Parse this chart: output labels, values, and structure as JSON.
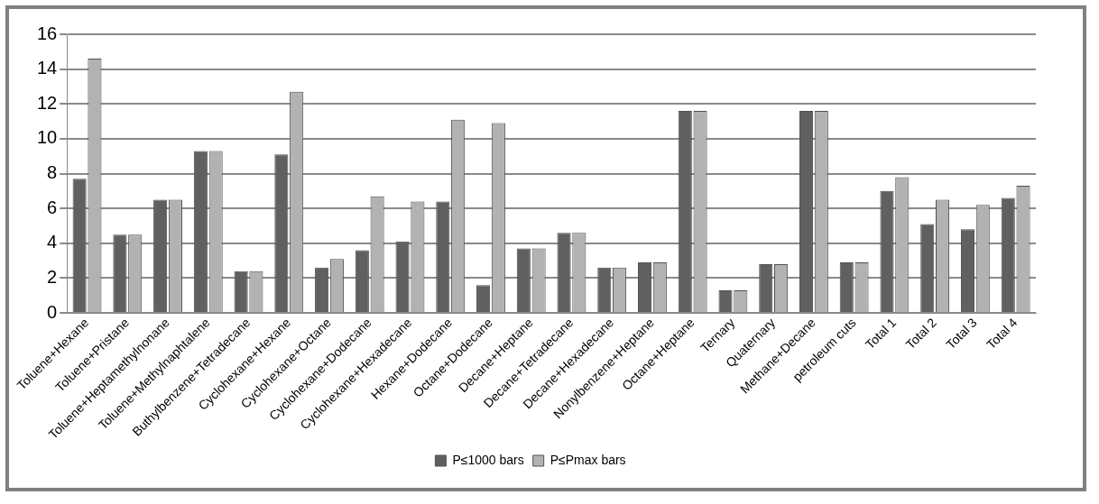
{
  "chart_data": {
    "type": "bar",
    "categories": [
      "Toluene+Hexane",
      "Toluene+Pristane",
      "Toluene+Heptamethylnonane",
      "Toluene+Methylnaphtalene",
      "Buthylbenzene+Tetradecane",
      "Cyclohexane+Hexane",
      "Cyclohexane+Octane",
      "Cyclohexane+Dodecane",
      "Cyclohexane+Hexadecane",
      "Hexane+Dodecane",
      "Octane+Dodecane",
      "Decane+Heptane",
      "Decane+Tetradecane",
      "Decane+Hexadecane",
      "Nonylbenzene+Heptane",
      "Octane+Heptane",
      "Ternary",
      "Quaternary",
      "Methane+Decane",
      "petroleum cuts",
      "Total 1",
      "Total 2",
      "Total 3",
      "Total 4"
    ],
    "series": [
      {
        "name": "P≤1000 bars",
        "color": "#606060",
        "values": [
          7.7,
          4.5,
          6.5,
          9.3,
          2.4,
          9.1,
          2.6,
          3.6,
          4.1,
          6.4,
          1.6,
          3.7,
          4.6,
          2.6,
          2.9,
          11.6,
          1.3,
          2.8,
          11.6,
          2.9,
          7.0,
          5.1,
          4.8,
          6.6
        ]
      },
      {
        "name": "P≤Pmax bars",
        "color": "#b2b2b2",
        "values": [
          14.6,
          4.5,
          6.5,
          9.3,
          2.4,
          12.7,
          3.1,
          6.7,
          6.4,
          11.1,
          10.9,
          3.7,
          4.6,
          2.6,
          2.9,
          11.6,
          1.3,
          2.8,
          11.6,
          2.9,
          7.8,
          6.5,
          6.2,
          7.3
        ]
      }
    ],
    "ylim": [
      0,
      16
    ],
    "yticks": [
      0,
      2,
      4,
      6,
      8,
      10,
      12,
      14,
      16
    ],
    "grid": "y",
    "legend": "bottom"
  }
}
